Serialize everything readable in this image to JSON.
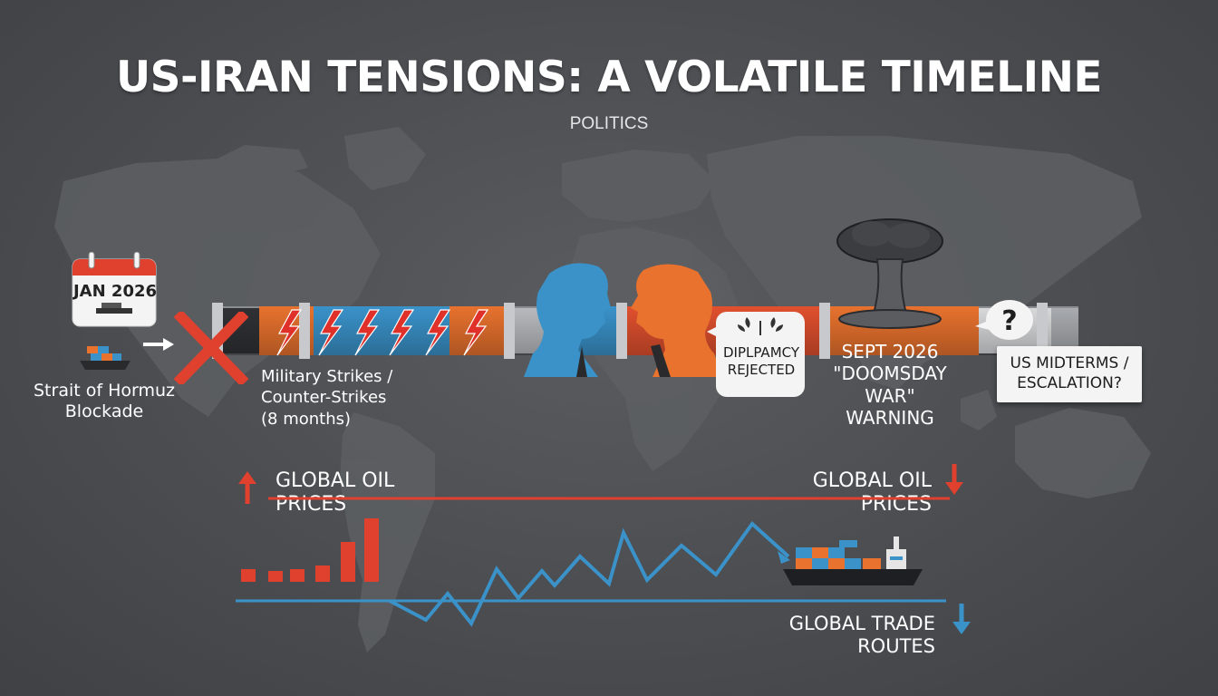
{
  "header": {
    "title": "US-IRAN TENSIONS: A VOLATILE TIMELINE",
    "category": "POLITICS"
  },
  "events": {
    "start_date": "JAN 2026",
    "blockade": "Strait of Hormuz Blockade",
    "strikes": [
      "Military Strikes /",
      "Counter-Strikes",
      "(8 months)"
    ],
    "diplomacy": [
      "DIPLPAMCY",
      "REJECTED"
    ],
    "warning": [
      "SEPT 2026",
      "\"DOOMSDAY",
      "WAR\"",
      "WARNING"
    ],
    "midterms": [
      "US MIDTERMS /",
      "ESCALATION?"
    ]
  },
  "indicators": {
    "oil_prices_left": "GLOBAL OIL PRICES",
    "oil_prices_right": "GLOBAL OIL PRICES",
    "trade_routes": "GLOBAL TRADE ROUTES"
  },
  "colors": {
    "accent_red": "#e0402e",
    "accent_orange": "#e8722e",
    "accent_blue": "#3a92c9",
    "background": "#4a4c50"
  },
  "icons": [
    "calendar-icon",
    "cargo-ship-icon",
    "arrow-right-icon",
    "red-x-icon",
    "lightning-bolt-icon",
    "blue-leader-silhouette",
    "orange-leader-silhouette",
    "olive-branch-icon",
    "mushroom-cloud-icon",
    "question-mark-icon",
    "arrow-up-icon",
    "arrow-down-icon"
  ]
}
